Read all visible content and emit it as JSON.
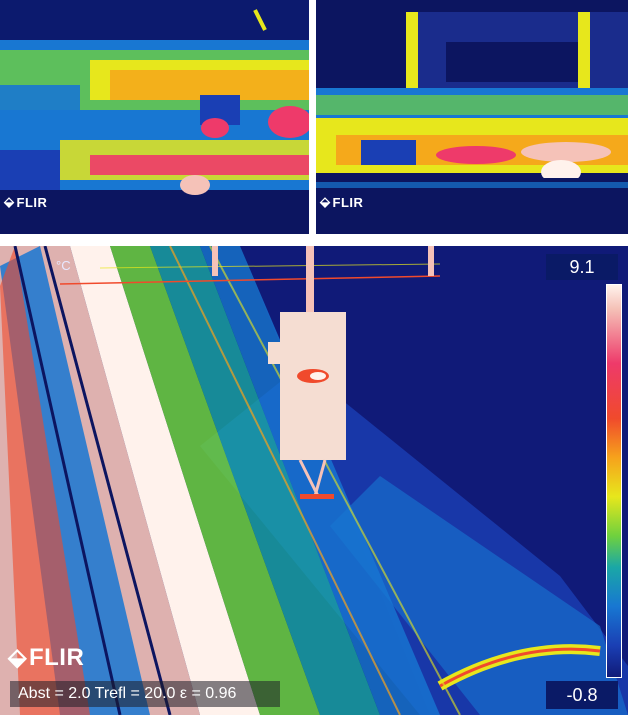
{
  "panels": {
    "top_left": {
      "logo_text": "FLIR"
    },
    "top_right": {
      "logo_text": "FLIR"
    },
    "bottom": {
      "logo_text": "FLIR",
      "unit": "°C",
      "scale_max": "9.1",
      "scale_min": "-0.8",
      "parameters": "Abst = 2.0  Trefl = 20.0  ε = 0.96"
    }
  },
  "icons": {
    "logo_glyph": "flir-logo-icon"
  },
  "colors": {
    "cold": "#0c1560",
    "cool": "#1877d2",
    "mid": "#e7e71c",
    "warm": "#f04a2c",
    "hot": "#fff2ec"
  }
}
